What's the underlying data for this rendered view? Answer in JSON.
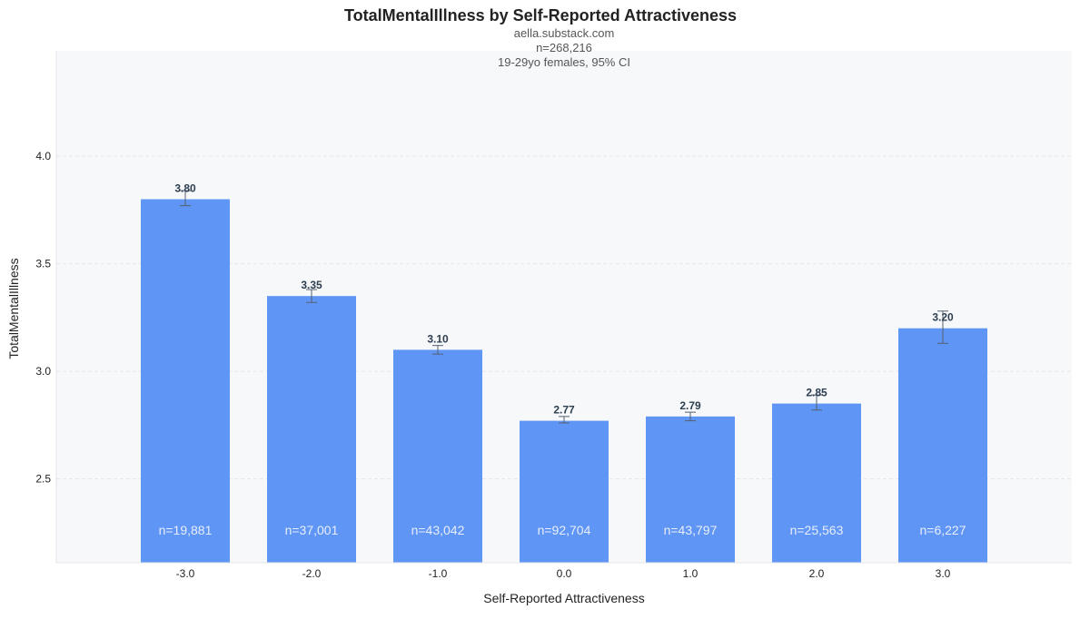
{
  "chart_data": {
    "type": "bar",
    "title": "TotalMentalIllness by Self-Reported Attractiveness",
    "subtitle_lines": [
      "aella.substack.com",
      "n=268,216",
      "19-29yo females, 95% CI"
    ],
    "xlabel": "Self-Reported Attractiveness",
    "ylabel": "TotalMentalIllness",
    "categories": [
      "-3.0",
      "-2.0",
      "-1.0",
      "0.0",
      "1.0",
      "2.0",
      "3.0"
    ],
    "values": [
      3.8,
      3.35,
      3.1,
      2.77,
      2.79,
      2.85,
      3.2
    ],
    "value_labels": [
      "3.80",
      "3.35",
      "3.10",
      "2.77",
      "2.79",
      "2.85",
      "3.20"
    ],
    "ci_low": [
      3.77,
      3.32,
      3.08,
      2.76,
      2.77,
      2.82,
      3.13
    ],
    "ci_high": [
      3.84,
      3.38,
      3.12,
      2.79,
      2.81,
      2.89,
      3.28
    ],
    "n_labels": [
      "n=19,881",
      "n=37,001",
      "n=43,042",
      "n=92,704",
      "n=43,797",
      "n=25,563",
      "n=6,227"
    ],
    "ylim": [
      2.11,
      4.49
    ],
    "yticks": [
      2.5,
      3.0,
      3.5,
      4.0
    ],
    "ytick_labels": [
      "2.5",
      "3.0",
      "3.5",
      "4.0"
    ],
    "grid": true,
    "colors": {
      "bar": "#5f95f5",
      "plot_background": "#f7f8fa",
      "error_bar": "#556070",
      "grid": "#e3e6ea"
    }
  }
}
